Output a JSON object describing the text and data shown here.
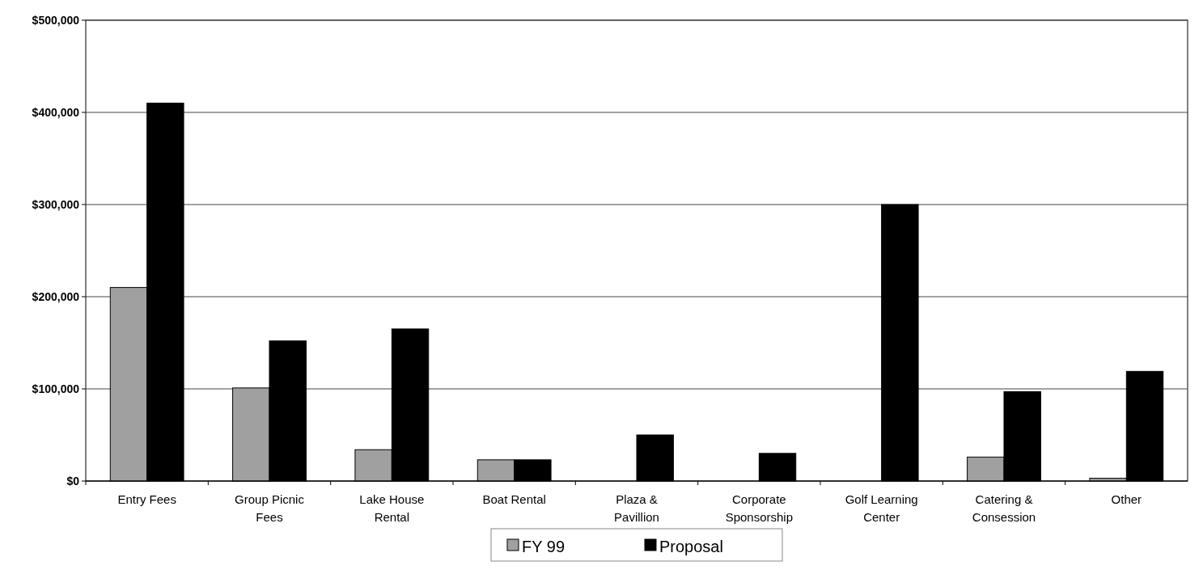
{
  "chart_data": {
    "type": "bar",
    "categories": [
      "Entry Fees",
      "Group Picnic Fees",
      "Lake House Rental",
      "Boat Rental",
      "Plaza & Pavillion",
      "Corporate Sponsorship",
      "Golf Learning Center",
      "Catering & Consession",
      "Other"
    ],
    "series": [
      {
        "name": "FY 99",
        "color": "#a0a0a0",
        "values": [
          210000,
          101000,
          34000,
          23000,
          0,
          0,
          0,
          26000,
          3000
        ]
      },
      {
        "name": "Proposal",
        "color": "#000000",
        "values": [
          410000,
          152000,
          165000,
          23000,
          50000,
          30000,
          300000,
          97000,
          119000
        ]
      }
    ],
    "ylim": [
      0,
      500000
    ],
    "yticks": [
      {
        "value": 0,
        "label": "$0"
      },
      {
        "value": 100000,
        "label": "$100,000"
      },
      {
        "value": 200000,
        "label": "$200,000"
      },
      {
        "value": 300000,
        "label": "$300,000"
      },
      {
        "value": 400000,
        "label": "$400,000"
      },
      {
        "value": 500000,
        "label": "$500,000"
      }
    ],
    "grid": "y",
    "legend": "bottom"
  }
}
